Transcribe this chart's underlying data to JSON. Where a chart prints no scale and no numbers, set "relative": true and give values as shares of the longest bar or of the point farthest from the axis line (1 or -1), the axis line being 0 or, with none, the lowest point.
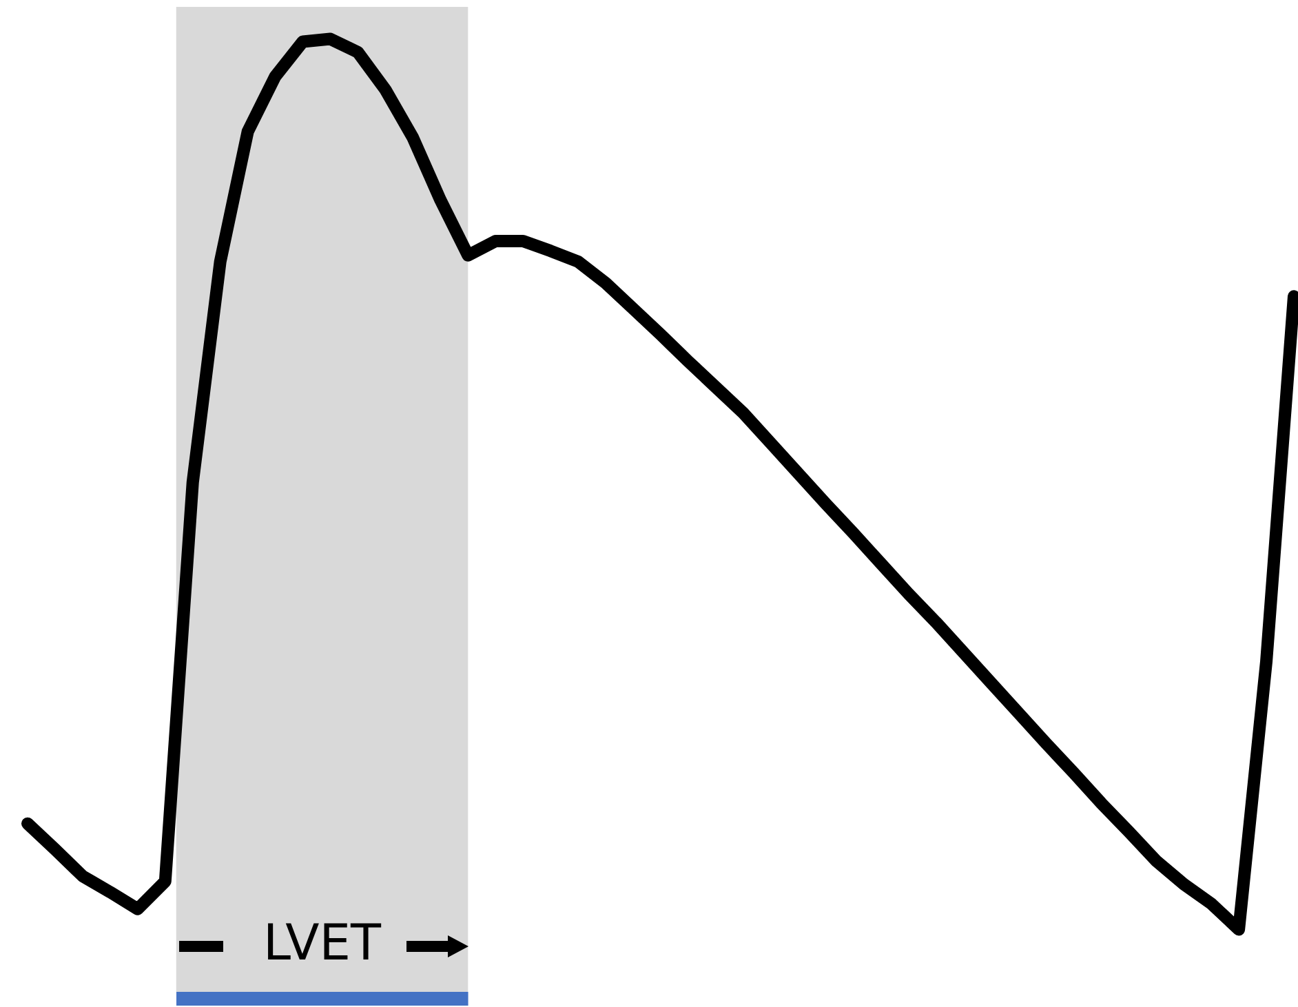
{
  "chart_data": {
    "type": "line",
    "relative": true,
    "line_style": "solid",
    "categories": [
      null,
      null,
      null,
      null,
      null,
      null,
      null,
      null,
      null,
      null,
      null,
      null,
      null,
      null,
      null,
      null,
      null,
      null,
      null,
      null,
      null,
      null,
      null,
      null,
      null,
      null,
      null,
      null,
      null,
      null,
      null,
      null,
      null,
      null,
      null,
      null,
      null,
      null,
      null,
      null,
      null,
      null,
      null,
      null,
      null,
      null,
      null
    ],
    "series": [
      {
        "color": "#000000",
        "values": [
          0.119,
          0.09,
          0.06,
          0.042,
          0.023,
          0.054,
          0.502,
          0.75,
          0.896,
          0.958,
          0.997,
          1,
          0.985,
          0.943,
          0.889,
          0.819,
          0.757,
          0.773,
          0.773,
          0.762,
          0.75,
          0.726,
          0.697,
          0.668,
          0.638,
          0.609,
          0.58,
          0.546,
          0.512,
          0.478,
          0.445,
          0.411,
          0.377,
          0.345,
          0.311,
          0.277,
          0.243,
          0.209,
          0.176,
          0.142,
          0.11,
          0.077,
          0.051,
          0.029,
          0,
          0.301,
          0.711
        ]
      }
    ],
    "annotations": [
      "LVET"
    ]
  }
}
